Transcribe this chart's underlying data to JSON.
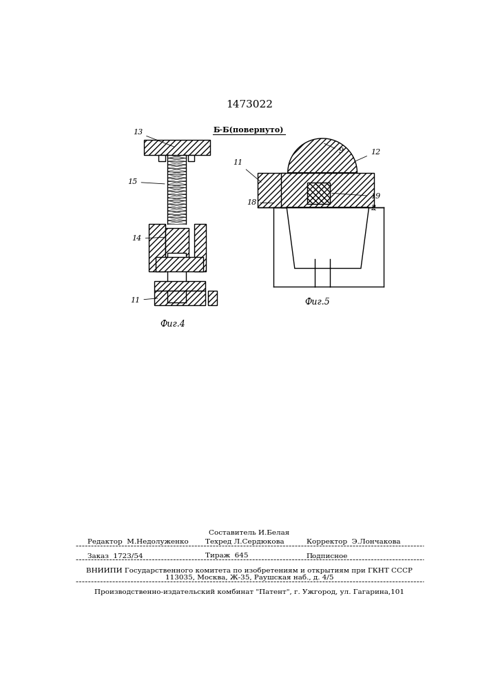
{
  "patent_number": "1473022",
  "bg": "#ffffff",
  "lc": "#000000",
  "fig4_label": "Фиг.4",
  "fig5_label": "Фиг.5",
  "section_label": "Б-Б(повернуто)",
  "footer": {
    "sostavitel": "Составитель И.Белая",
    "redaktor": "Редактор  М.Недолуженко",
    "tehred": "Техред Л.Сердюкова",
    "korrektor": "Корректор  Э.Лончакова",
    "zakaz": "Заказ  1723/54",
    "tirazh": "Тираж  645",
    "podpisnoe": "Подписное",
    "vniipI_1": "ВНИИПИ Государственного комитета по изобретениям и открытиям при ГКНТ СССР",
    "vniipI_2": "113035, Москва, Ж-35, Раушская наб., д. 4/5",
    "proizvod": "Производственно-издательский комбинат \"Патент\", г. Ужгород, ул. Гагарина,101"
  }
}
